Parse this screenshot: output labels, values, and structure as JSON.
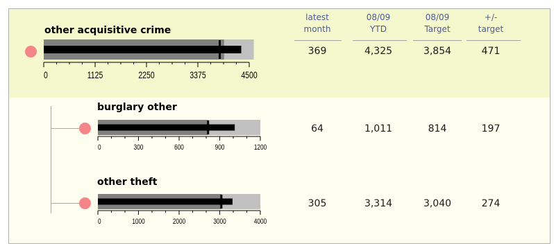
{
  "colors": {
    "panel_bg": "#fefef0",
    "top_band_bg": "#f5f8cc",
    "range_outer": "#c0c0c0",
    "range_inner": "#808080",
    "measure": "#000000",
    "status_red": "#f4868a",
    "header_text": "#4d5a94"
  },
  "columns": [
    {
      "line1": "latest",
      "line2": "month"
    },
    {
      "line1": "08/09",
      "line2": "YTD"
    },
    {
      "line1": "08/09",
      "line2": "Target"
    },
    {
      "line1": "+/-",
      "line2": "target"
    }
  ],
  "chart_data": [
    {
      "type": "bullet",
      "title": "other acquisitive crime",
      "status": "red",
      "axis": {
        "min": 0,
        "max": 4500,
        "ticks": [
          0,
          1125,
          2250,
          3375,
          4500
        ]
      },
      "ranges": [
        3950,
        4600
      ],
      "measure": 4325,
      "target": 3854,
      "values": {
        "latest_month": "369",
        "ytd": "4,325",
        "target": "3,854",
        "diff": "471"
      }
    },
    {
      "type": "bullet",
      "title": "burglary other",
      "status": "red",
      "axis": {
        "min": 0,
        "max": 1200,
        "ticks": [
          0,
          300,
          600,
          900,
          1200
        ]
      },
      "ranges": [
        814,
        1200
      ],
      "measure": 1011,
      "target": 814,
      "values": {
        "latest_month": "64",
        "ytd": "1,011",
        "target": "814",
        "diff": "197"
      }
    },
    {
      "type": "bullet",
      "title": "other theft",
      "status": "red",
      "axis": {
        "min": 0,
        "max": 4000,
        "ticks": [
          0,
          1000,
          2000,
          3000,
          4000
        ]
      },
      "ranges": [
        3040,
        4000
      ],
      "measure": 3314,
      "target": 3040,
      "values": {
        "latest_month": "305",
        "ytd": "3,314",
        "target": "3,040",
        "diff": "274"
      }
    }
  ]
}
